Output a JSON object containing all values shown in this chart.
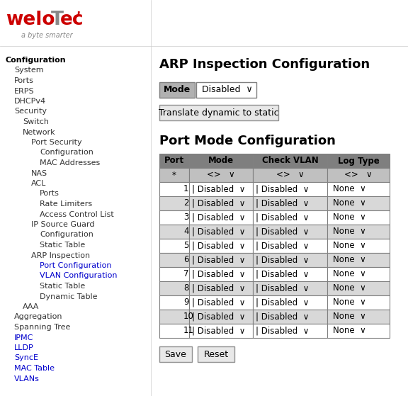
{
  "bg_color": "#ffffff",
  "logo_subtitle": "a byte smarter",
  "nav_items": [
    {
      "text": "Configuration",
      "bold": true,
      "indent": 0,
      "color": "black"
    },
    {
      "text": "System",
      "bold": false,
      "indent": 1,
      "color": "dark"
    },
    {
      "text": "Ports",
      "bold": false,
      "indent": 1,
      "color": "dark"
    },
    {
      "text": "ERPS",
      "bold": false,
      "indent": 1,
      "color": "dark"
    },
    {
      "text": "DHCPv4",
      "bold": false,
      "indent": 1,
      "color": "dark"
    },
    {
      "text": "Security",
      "bold": false,
      "indent": 1,
      "color": "dark"
    },
    {
      "text": "Switch",
      "bold": false,
      "indent": 2,
      "color": "dark"
    },
    {
      "text": "Network",
      "bold": false,
      "indent": 2,
      "color": "dark"
    },
    {
      "text": "Port Security",
      "bold": false,
      "indent": 3,
      "color": "dark"
    },
    {
      "text": "Configuration",
      "bold": false,
      "indent": 4,
      "color": "dark"
    },
    {
      "text": "MAC Addresses",
      "bold": false,
      "indent": 4,
      "color": "dark"
    },
    {
      "text": "NAS",
      "bold": false,
      "indent": 3,
      "color": "dark"
    },
    {
      "text": "ACL",
      "bold": false,
      "indent": 3,
      "color": "dark"
    },
    {
      "text": "Ports",
      "bold": false,
      "indent": 4,
      "color": "dark"
    },
    {
      "text": "Rate Limiters",
      "bold": false,
      "indent": 4,
      "color": "dark"
    },
    {
      "text": "Access Control List",
      "bold": false,
      "indent": 4,
      "color": "dark"
    },
    {
      "text": "IP Source Guard",
      "bold": false,
      "indent": 3,
      "color": "dark"
    },
    {
      "text": "Configuration",
      "bold": false,
      "indent": 4,
      "color": "dark"
    },
    {
      "text": "Static Table",
      "bold": false,
      "indent": 4,
      "color": "dark"
    },
    {
      "text": "ARP Inspection",
      "bold": false,
      "indent": 3,
      "color": "dark"
    },
    {
      "text": "Port Configuration",
      "bold": false,
      "indent": 4,
      "color": "link"
    },
    {
      "text": "VLAN Configuration",
      "bold": false,
      "indent": 4,
      "color": "link"
    },
    {
      "text": "Static Table",
      "bold": false,
      "indent": 4,
      "color": "dark"
    },
    {
      "text": "Dynamic Table",
      "bold": false,
      "indent": 4,
      "color": "dark"
    },
    {
      "text": "AAA",
      "bold": false,
      "indent": 2,
      "color": "dark"
    },
    {
      "text": "Aggregation",
      "bold": false,
      "indent": 1,
      "color": "dark"
    },
    {
      "text": "Spanning Tree",
      "bold": false,
      "indent": 1,
      "color": "dark"
    },
    {
      "text": "IPMC",
      "bold": false,
      "indent": 1,
      "color": "link"
    },
    {
      "text": "LLDP",
      "bold": false,
      "indent": 1,
      "color": "link"
    },
    {
      "text": "SyncE",
      "bold": false,
      "indent": 1,
      "color": "link"
    },
    {
      "text": "MAC Table",
      "bold": false,
      "indent": 1,
      "color": "link"
    },
    {
      "text": "VLANs",
      "bold": false,
      "indent": 1,
      "color": "link"
    }
  ],
  "main_title": "ARP Inspection Configuration",
  "mode_label": "Mode",
  "mode_value": "Disabled",
  "translate_btn": "Translate dynamic to static",
  "section_title": "Port Mode Configuration",
  "table_headers": [
    "Port",
    "Mode",
    "Check VLAN",
    "Log Type"
  ],
  "table_header_bg": "#7f7f7f",
  "table_star_bg": "#c0c0c0",
  "table_even_bg": "#d8d8d8",
  "table_odd_bg": "#ffffff",
  "ports": [
    1,
    2,
    3,
    4,
    5,
    6,
    7,
    8,
    9,
    10,
    11
  ],
  "mode_col": "Disabled",
  "check_vlan_col": "Disabled",
  "log_type_col": "None",
  "save_btn": "Save",
  "reset_btn": "Reset",
  "nav_link_color": "#0000cc",
  "logo_red": "#cc0000",
  "logo_gray": "#888888",
  "logo_T_color": "#888888"
}
